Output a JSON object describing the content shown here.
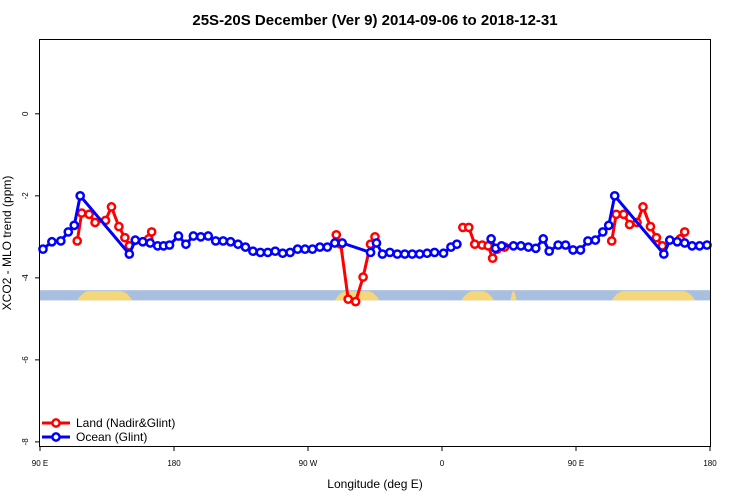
{
  "chart_data": {
    "type": "line",
    "title": "25S-20S December (Ver 9)   2014-09-06 to 2018-12-31",
    "xlabel": "Longitude (deg E)",
    "ylabel": "XCO2 - MLO trend (ppm)",
    "x_unit": "longitude index (0 = 90 E, 450 = 180 E wrapped)",
    "xlim": [
      0,
      450
    ],
    "ylim": [
      -8.1,
      1.8
    ],
    "x_ticks": [
      {
        "value": 0,
        "label": "90 E"
      },
      {
        "value": 90,
        "label": "180"
      },
      {
        "value": 180,
        "label": "90 W"
      },
      {
        "value": 270,
        "label": "0"
      },
      {
        "value": 360,
        "label": "90 E"
      },
      {
        "value": 450,
        "label": "180"
      }
    ],
    "y_ticks": [
      {
        "value": 0,
        "label": "0"
      },
      {
        "value": -2,
        "label": "-2"
      },
      {
        "value": -4,
        "label": "-4"
      },
      {
        "value": -6,
        "label": "-6"
      },
      {
        "value": -8,
        "label": "-8"
      }
    ],
    "landmask": {
      "y_range": [
        -4.55,
        -4.3
      ],
      "ocean_color": "#a9bfe0",
      "land_color": "#f5d77a",
      "land_segments": [
        [
          25,
          62
        ],
        [
          198,
          228
        ],
        [
          283,
          305
        ],
        [
          316,
          320
        ],
        [
          384,
          440
        ]
      ]
    },
    "legend": {
      "position": "bottom-left"
    },
    "series": [
      {
        "name": "Land (Nadir&Glint)",
        "color": "#ff0000",
        "points": [
          [
            25,
            -3.1
          ],
          [
            28,
            -2.42
          ],
          [
            33,
            -2.45
          ],
          [
            37,
            -2.65
          ],
          [
            44,
            -2.6
          ],
          [
            48,
            -2.27
          ],
          [
            53,
            -2.75
          ],
          [
            57,
            -3.02
          ],
          [
            60,
            -3.22
          ],
          [
            73,
            -3.05
          ],
          [
            75,
            -2.88
          ],
          null,
          [
            199,
            -2.95
          ],
          [
            202,
            -3.18
          ],
          [
            207,
            -4.52
          ],
          [
            212,
            -4.58
          ],
          [
            217,
            -3.98
          ],
          [
            222,
            -3.18
          ],
          [
            225,
            -3.0
          ],
          null,
          [
            284,
            -2.77
          ],
          [
            288,
            -2.77
          ],
          [
            292,
            -3.18
          ],
          [
            297,
            -3.2
          ],
          [
            301,
            -3.22
          ],
          [
            304,
            -3.52
          ],
          [
            307,
            -3.3
          ],
          [
            312,
            -3.25
          ],
          null,
          [
            384,
            -3.1
          ],
          [
            387,
            -2.45
          ],
          [
            392,
            -2.45
          ],
          [
            396,
            -2.7
          ],
          [
            401,
            -2.65
          ],
          [
            405,
            -2.27
          ],
          [
            410,
            -2.75
          ],
          [
            414,
            -3.02
          ],
          [
            418,
            -3.22
          ],
          [
            430,
            -3.05
          ],
          [
            433,
            -2.88
          ]
        ]
      },
      {
        "name": "Ocean (Glint)",
        "color": "#0000ff",
        "points": [
          [
            2,
            -3.3
          ],
          [
            8,
            -3.12
          ],
          [
            14,
            -3.1
          ],
          [
            19,
            -2.88
          ],
          [
            23,
            -2.72
          ],
          [
            27,
            -2.0
          ],
          [
            60,
            -3.42
          ],
          [
            64,
            -3.08
          ],
          [
            69,
            -3.12
          ],
          [
            74,
            -3.15
          ],
          [
            79,
            -3.22
          ],
          [
            83,
            -3.22
          ],
          [
            87,
            -3.2
          ],
          [
            93,
            -2.98
          ],
          [
            98,
            -3.18
          ],
          [
            103,
            -2.98
          ],
          [
            108,
            -3.0
          ],
          [
            113,
            -2.98
          ],
          [
            118,
            -3.1
          ],
          [
            123,
            -3.1
          ],
          [
            128,
            -3.12
          ],
          [
            133,
            -3.18
          ],
          [
            138,
            -3.25
          ],
          [
            143,
            -3.35
          ],
          [
            148,
            -3.38
          ],
          [
            153,
            -3.38
          ],
          [
            158,
            -3.35
          ],
          [
            163,
            -3.4
          ],
          [
            168,
            -3.38
          ],
          [
            173,
            -3.3
          ],
          [
            178,
            -3.3
          ],
          [
            183,
            -3.3
          ],
          [
            188,
            -3.25
          ],
          [
            193,
            -3.25
          ],
          [
            198,
            -3.15
          ],
          [
            203,
            -3.15
          ],
          [
            222,
            -3.38
          ],
          [
            226,
            -3.15
          ],
          [
            230,
            -3.42
          ],
          [
            235,
            -3.38
          ],
          [
            240,
            -3.42
          ],
          [
            245,
            -3.42
          ],
          [
            250,
            -3.42
          ],
          [
            255,
            -3.42
          ],
          [
            260,
            -3.4
          ],
          [
            265,
            -3.38
          ],
          [
            271,
            -3.4
          ],
          [
            276,
            -3.25
          ],
          [
            280,
            -3.18
          ],
          null,
          [
            303,
            -3.05
          ],
          [
            306,
            -3.28
          ],
          [
            310,
            -3.22
          ],
          [
            318,
            -3.22
          ],
          [
            323,
            -3.22
          ],
          [
            328,
            -3.25
          ],
          [
            333,
            -3.28
          ],
          [
            338,
            -3.05
          ],
          [
            342,
            -3.35
          ],
          [
            348,
            -3.2
          ],
          [
            353,
            -3.2
          ],
          [
            358,
            -3.32
          ],
          [
            363,
            -3.32
          ],
          [
            368,
            -3.1
          ],
          [
            373,
            -3.08
          ],
          [
            378,
            -2.88
          ],
          [
            382,
            -2.72
          ],
          [
            386,
            -2.0
          ],
          [
            419,
            -3.42
          ],
          [
            423,
            -3.08
          ],
          [
            428,
            -3.12
          ],
          [
            433,
            -3.15
          ],
          [
            438,
            -3.22
          ],
          [
            443,
            -3.22
          ],
          [
            448,
            -3.2
          ]
        ]
      }
    ]
  }
}
